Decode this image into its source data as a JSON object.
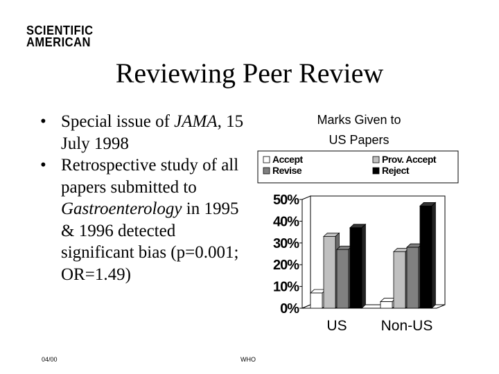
{
  "logo": {
    "line1": "SCIENTIFIC",
    "line2": "AMERICAN"
  },
  "slide": {
    "title": "Reviewing Peer Review",
    "bullets": [
      {
        "bullet": "•",
        "prefix": "Special issue of ",
        "emph": "JAMA",
        "suffix": ", 15 July 1998"
      },
      {
        "bullet": "•",
        "prefix": "Retrospective study of all papers submitted to ",
        "emph": "Gastroenterology",
        "suffix": " in 1995 & 1996 detected significant bias (p=0.001; OR=1.49)"
      }
    ]
  },
  "footer": {
    "date": "04/00",
    "org": "WHO"
  },
  "chart_data": {
    "type": "bar",
    "title": "Marks Given to US Papers",
    "categories": [
      "US",
      "Non-US"
    ],
    "series": [
      {
        "name": "Accept",
        "values": [
          7,
          3
        ],
        "color": "#ffffff"
      },
      {
        "name": "Prov. Accept",
        "values": [
          33,
          26
        ],
        "color": "#c0c0c0"
      },
      {
        "name": "Revise",
        "values": [
          27,
          28
        ],
        "color": "#808080"
      },
      {
        "name": "Reject",
        "values": [
          37,
          47
        ],
        "color": "#000000"
      }
    ],
    "ylim": [
      0,
      50
    ],
    "yticks": [
      "0%",
      "10%",
      "20%",
      "30%",
      "40%",
      "50%"
    ],
    "legend_position": "top",
    "grid": false
  }
}
